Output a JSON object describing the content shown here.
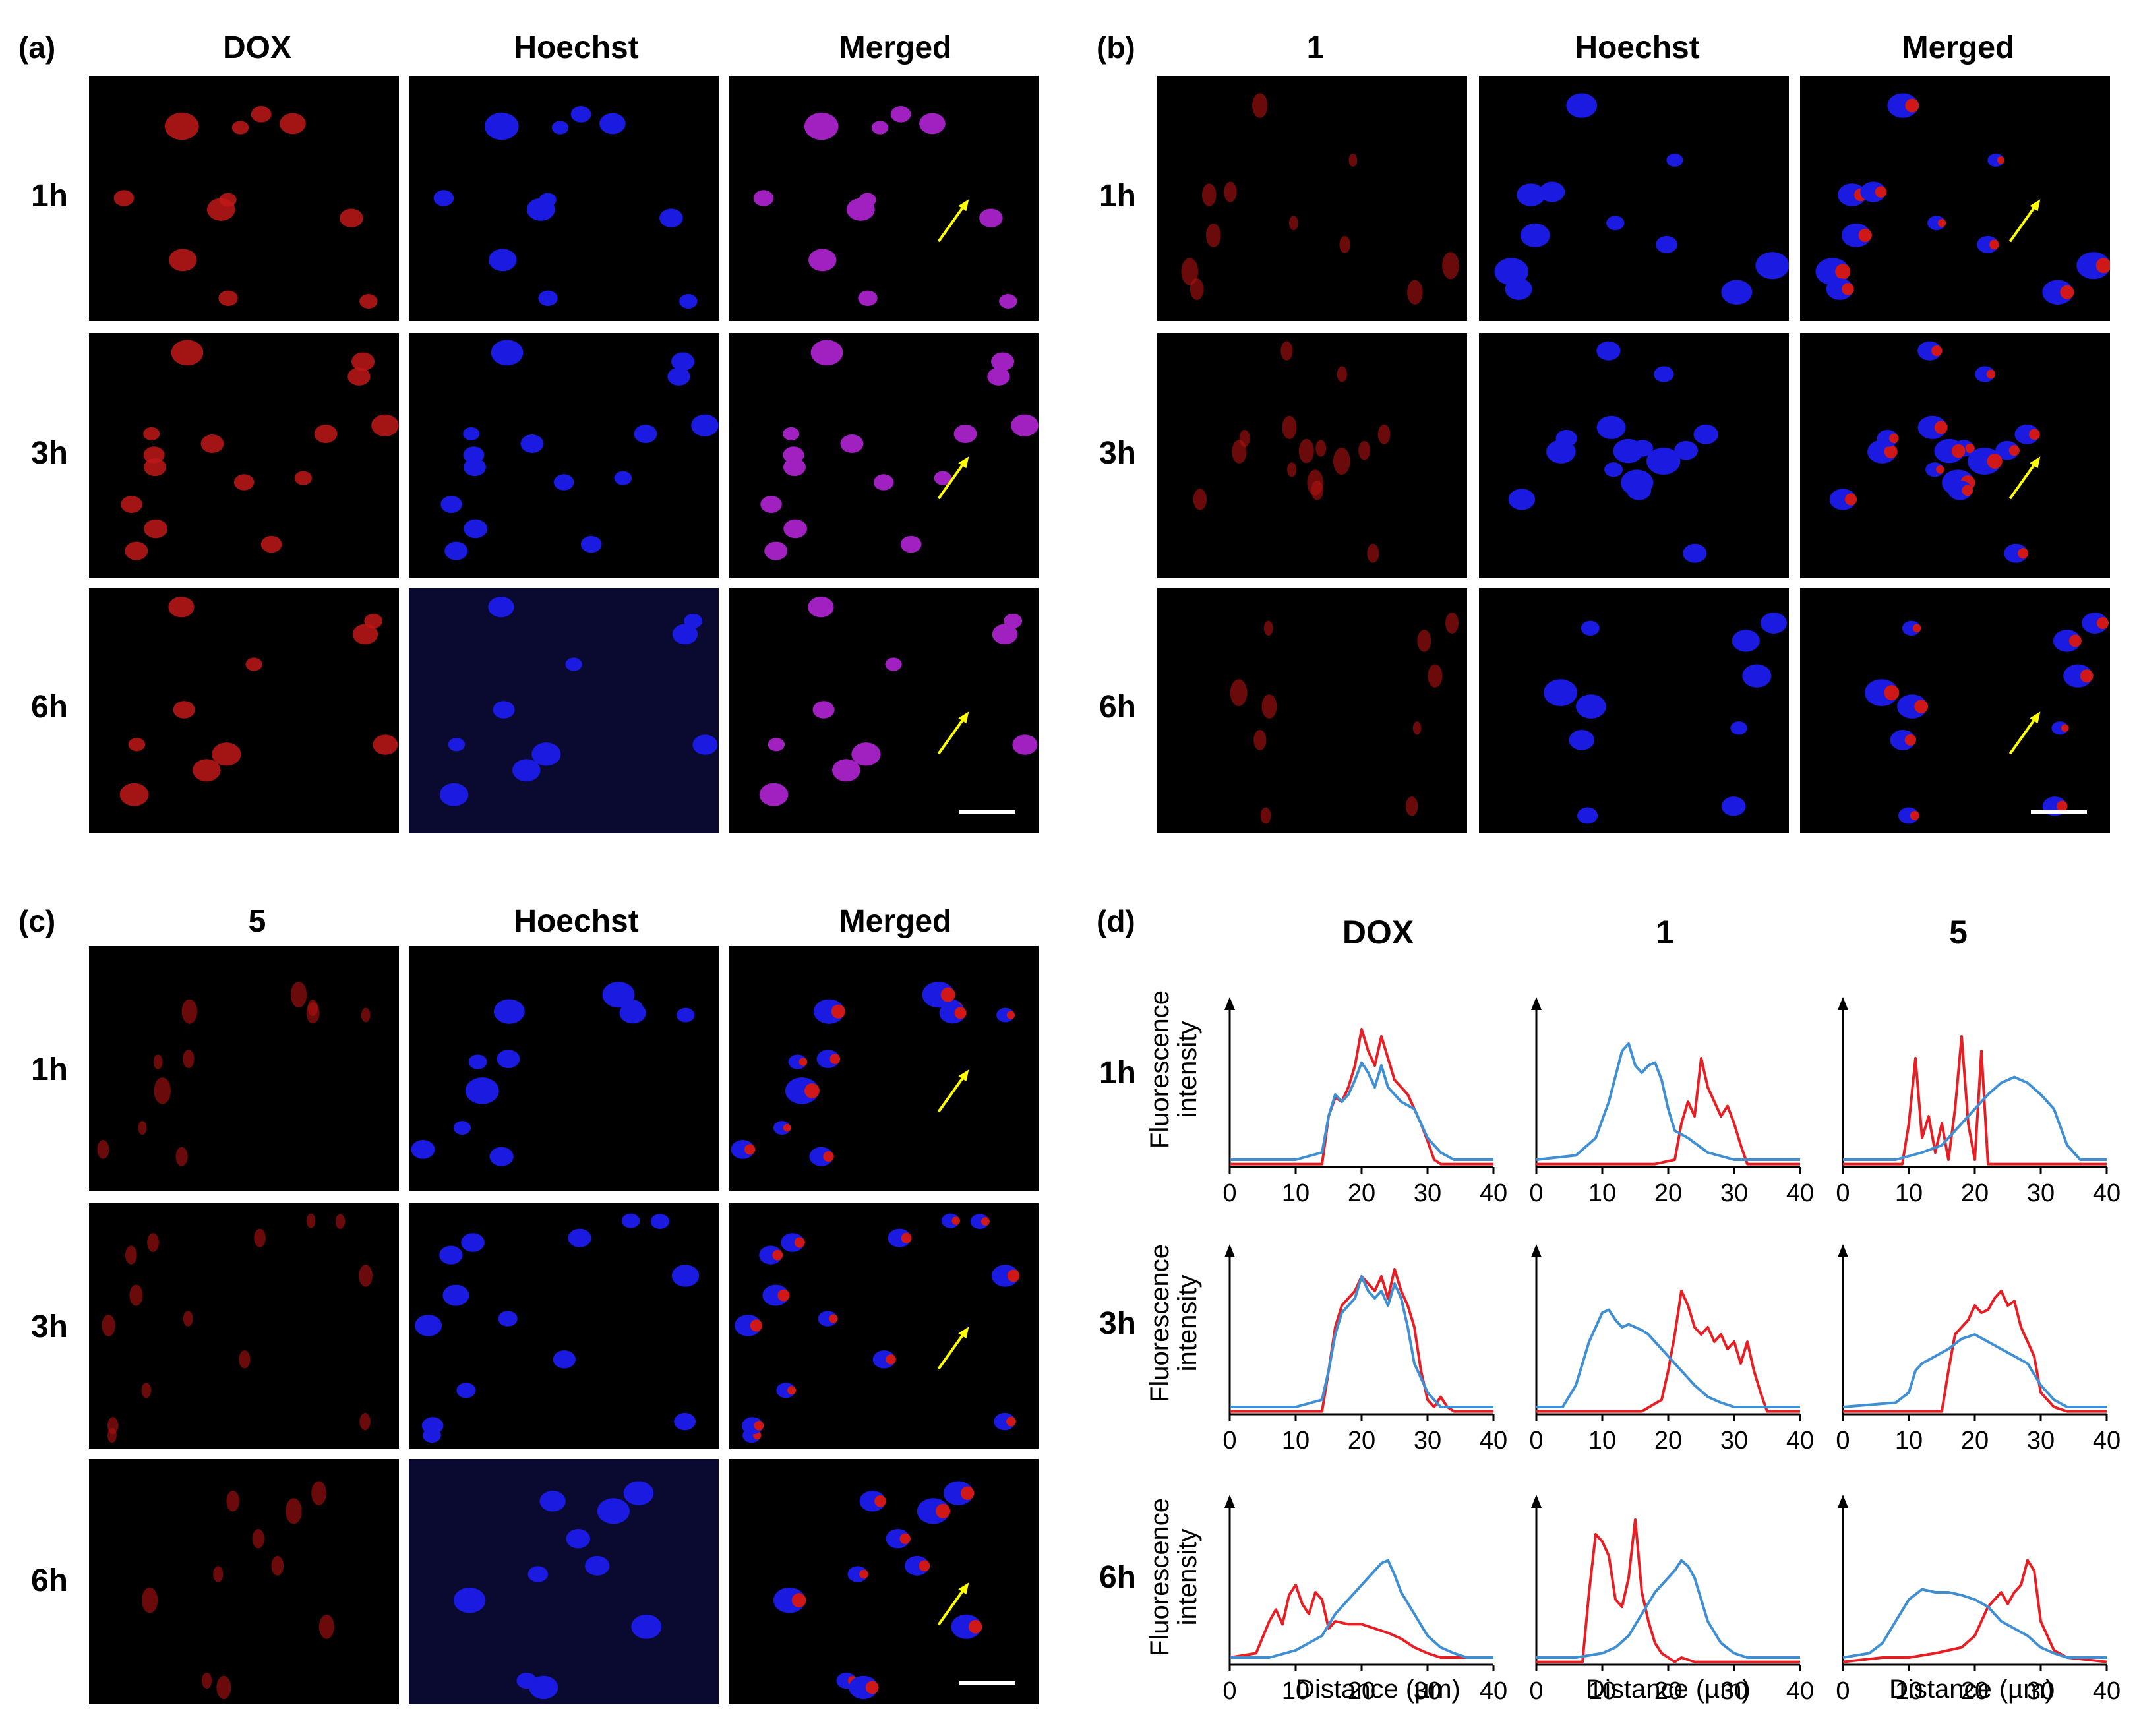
{
  "panels": {
    "a": {
      "label": "(a)",
      "columns": [
        "DOX",
        "Hoechst",
        "Merged"
      ],
      "rows": [
        "1h",
        "3h",
        "6h"
      ]
    },
    "b": {
      "label": "(b)",
      "columns": [
        "1",
        "Hoechst",
        "Merged"
      ],
      "rows": [
        "1h",
        "3h",
        "6h"
      ]
    },
    "c": {
      "label": "(c)",
      "columns": [
        "5",
        "Hoechst",
        "Merged"
      ],
      "rows": [
        "1h",
        "3h",
        "6h"
      ]
    },
    "d": {
      "label": "(d)",
      "columns": [
        "DOX",
        "1",
        "5"
      ],
      "rows": [
        "1h",
        "3h",
        "6h"
      ],
      "ylabel": "Fluorescence\nintensity",
      "xlabel": "Distance (µm)"
    }
  },
  "colors": {
    "red_channel": "#e81e25",
    "blue_channel": "#3f8fd2",
    "arrow": "#ffff00",
    "scalebar": "#ffffff"
  },
  "chart_data": [
    {
      "type": "line",
      "panel": "d",
      "compound": "DOX",
      "time": "1h",
      "xlim": [
        0,
        40
      ],
      "xticks": [
        0,
        10,
        20,
        30,
        40
      ],
      "series": [
        {
          "color": "red",
          "x": [
            0,
            14,
            15,
            16,
            17,
            18,
            19,
            20,
            21,
            22,
            23,
            24,
            25,
            26,
            27,
            28,
            29,
            30,
            31,
            32,
            40
          ],
          "y": [
            0.02,
            0.02,
            0.35,
            0.48,
            0.45,
            0.55,
            0.7,
            0.95,
            0.8,
            0.7,
            0.9,
            0.75,
            0.6,
            0.55,
            0.5,
            0.4,
            0.3,
            0.18,
            0.05,
            0.02,
            0.02
          ]
        },
        {
          "color": "blue",
          "x": [
            0,
            10,
            14,
            15,
            16,
            17,
            18,
            19,
            20,
            21,
            22,
            23,
            24,
            25,
            26,
            28,
            30,
            32,
            34,
            40
          ],
          "y": [
            0.05,
            0.05,
            0.1,
            0.35,
            0.5,
            0.45,
            0.5,
            0.6,
            0.72,
            0.65,
            0.55,
            0.7,
            0.55,
            0.5,
            0.45,
            0.4,
            0.2,
            0.1,
            0.05,
            0.05
          ]
        }
      ]
    },
    {
      "type": "line",
      "panel": "d",
      "compound": "1",
      "time": "1h",
      "xlim": [
        0,
        40
      ],
      "xticks": [
        0,
        10,
        20,
        30,
        40
      ],
      "series": [
        {
          "color": "red",
          "x": [
            0,
            18,
            21,
            22,
            23,
            24,
            25,
            26,
            27,
            28,
            29,
            30,
            31,
            32,
            40
          ],
          "y": [
            0.02,
            0.02,
            0.05,
            0.3,
            0.45,
            0.35,
            0.75,
            0.55,
            0.45,
            0.35,
            0.42,
            0.3,
            0.15,
            0.02,
            0.02
          ]
        },
        {
          "color": "blue",
          "x": [
            0,
            6,
            9,
            11,
            13,
            14,
            15,
            16,
            17,
            18,
            19,
            20,
            21,
            23,
            26,
            30,
            40
          ],
          "y": [
            0.05,
            0.08,
            0.2,
            0.45,
            0.8,
            0.85,
            0.7,
            0.65,
            0.7,
            0.72,
            0.6,
            0.4,
            0.25,
            0.2,
            0.1,
            0.05,
            0.05
          ]
        }
      ]
    },
    {
      "type": "line",
      "panel": "d",
      "compound": "5",
      "time": "1h",
      "xlim": [
        0,
        40
      ],
      "xticks": [
        0,
        10,
        20,
        30,
        40
      ],
      "series": [
        {
          "color": "red",
          "x": [
            0,
            9,
            10,
            11,
            12,
            13,
            14,
            15,
            16,
            17,
            18,
            19,
            20,
            21,
            22,
            23,
            40
          ],
          "y": [
            0.02,
            0.02,
            0.3,
            0.75,
            0.2,
            0.35,
            0.1,
            0.3,
            0.05,
            0.4,
            0.9,
            0.3,
            0.05,
            0.8,
            0.02,
            0.02,
            0.02
          ]
        },
        {
          "color": "blue",
          "x": [
            0,
            8,
            12,
            15,
            18,
            20,
            22,
            24,
            26,
            28,
            30,
            32,
            34,
            36,
            40
          ],
          "y": [
            0.05,
            0.05,
            0.1,
            0.15,
            0.3,
            0.4,
            0.5,
            0.58,
            0.62,
            0.58,
            0.5,
            0.4,
            0.15,
            0.05,
            0.05
          ]
        }
      ]
    },
    {
      "type": "line",
      "panel": "d",
      "compound": "DOX",
      "time": "3h",
      "xlim": [
        0,
        40
      ],
      "xticks": [
        0,
        10,
        20,
        30,
        40
      ],
      "series": [
        {
          "color": "red",
          "x": [
            0,
            14,
            15,
            16,
            17,
            18,
            19,
            20,
            21,
            22,
            23,
            24,
            25,
            26,
            27,
            28,
            29,
            30,
            31,
            32,
            33,
            34,
            40
          ],
          "y": [
            0.02,
            0.02,
            0.3,
            0.6,
            0.75,
            0.8,
            0.85,
            0.95,
            0.9,
            0.85,
            0.95,
            0.8,
            1.0,
            0.85,
            0.75,
            0.6,
            0.3,
            0.1,
            0.05,
            0.12,
            0.05,
            0.02,
            0.02
          ]
        },
        {
          "color": "blue",
          "x": [
            0,
            10,
            14,
            15,
            16,
            17,
            18,
            19,
            20,
            21,
            22,
            23,
            24,
            25,
            26,
            27,
            28,
            30,
            32,
            40
          ],
          "y": [
            0.05,
            0.05,
            0.1,
            0.3,
            0.55,
            0.7,
            0.75,
            0.8,
            0.95,
            0.85,
            0.8,
            0.85,
            0.75,
            0.9,
            0.8,
            0.6,
            0.35,
            0.15,
            0.05,
            0.05
          ]
        }
      ]
    },
    {
      "type": "line",
      "panel": "d",
      "compound": "1",
      "time": "3h",
      "xlim": [
        0,
        40
      ],
      "xticks": [
        0,
        10,
        20,
        30,
        40
      ],
      "series": [
        {
          "color": "red",
          "x": [
            0,
            16,
            19,
            20,
            21,
            22,
            23,
            24,
            25,
            26,
            27,
            28,
            29,
            30,
            31,
            32,
            33,
            34,
            35,
            40
          ],
          "y": [
            0.02,
            0.02,
            0.1,
            0.3,
            0.55,
            0.85,
            0.75,
            0.6,
            0.55,
            0.6,
            0.5,
            0.55,
            0.45,
            0.5,
            0.35,
            0.5,
            0.3,
            0.15,
            0.02,
            0.02
          ]
        },
        {
          "color": "blue",
          "x": [
            0,
            4,
            6,
            8,
            10,
            11,
            12,
            13,
            14,
            15,
            16,
            17,
            18,
            20,
            22,
            24,
            26,
            28,
            30,
            34,
            40
          ],
          "y": [
            0.05,
            0.05,
            0.2,
            0.5,
            0.7,
            0.72,
            0.65,
            0.6,
            0.62,
            0.6,
            0.58,
            0.55,
            0.5,
            0.4,
            0.3,
            0.2,
            0.12,
            0.08,
            0.05,
            0.05,
            0.05
          ]
        }
      ]
    },
    {
      "type": "line",
      "panel": "d",
      "compound": "5",
      "time": "3h",
      "xlim": [
        0,
        40
      ],
      "xticks": [
        0,
        10,
        20,
        30,
        40
      ],
      "series": [
        {
          "color": "red",
          "x": [
            0,
            15,
            16,
            17,
            18,
            19,
            20,
            21,
            22,
            23,
            24,
            25,
            26,
            27,
            28,
            29,
            30,
            32,
            34,
            40
          ],
          "y": [
            0.02,
            0.02,
            0.3,
            0.55,
            0.6,
            0.65,
            0.75,
            0.7,
            0.72,
            0.8,
            0.85,
            0.75,
            0.78,
            0.6,
            0.5,
            0.4,
            0.15,
            0.05,
            0.02,
            0.02
          ]
        },
        {
          "color": "blue",
          "x": [
            0,
            8,
            10,
            11,
            12,
            14,
            16,
            18,
            20,
            22,
            24,
            26,
            28,
            30,
            32,
            34,
            36,
            40
          ],
          "y": [
            0.05,
            0.08,
            0.15,
            0.3,
            0.35,
            0.4,
            0.45,
            0.52,
            0.55,
            0.5,
            0.45,
            0.4,
            0.35,
            0.2,
            0.1,
            0.05,
            0.05,
            0.05
          ]
        }
      ]
    },
    {
      "type": "line",
      "panel": "d",
      "compound": "DOX",
      "time": "6h",
      "xlim": [
        0,
        40
      ],
      "xticks": [
        0,
        10,
        20,
        30,
        40
      ],
      "series": [
        {
          "color": "red",
          "x": [
            0,
            4,
            6,
            7,
            8,
            9,
            10,
            11,
            12,
            13,
            14,
            15,
            16,
            18,
            20,
            22,
            24,
            26,
            28,
            30,
            32,
            36,
            40
          ],
          "y": [
            0.05,
            0.08,
            0.3,
            0.38,
            0.28,
            0.48,
            0.55,
            0.42,
            0.35,
            0.5,
            0.45,
            0.25,
            0.3,
            0.28,
            0.28,
            0.25,
            0.22,
            0.18,
            0.12,
            0.08,
            0.05,
            0.05,
            0.05
          ]
        },
        {
          "color": "blue",
          "x": [
            0,
            6,
            10,
            14,
            16,
            18,
            20,
            21,
            22,
            23,
            24,
            25,
            26,
            28,
            30,
            32,
            34,
            36,
            40
          ],
          "y": [
            0.05,
            0.05,
            0.1,
            0.2,
            0.35,
            0.45,
            0.55,
            0.6,
            0.65,
            0.7,
            0.72,
            0.62,
            0.5,
            0.35,
            0.2,
            0.12,
            0.08,
            0.05,
            0.05
          ]
        }
      ]
    },
    {
      "type": "line",
      "panel": "d",
      "compound": "1",
      "time": "6h",
      "xlim": [
        0,
        40
      ],
      "xticks": [
        0,
        10,
        20,
        30,
        40
      ],
      "series": [
        {
          "color": "red",
          "x": [
            0,
            7,
            8,
            9,
            10,
            11,
            12,
            13,
            14,
            15,
            16,
            17,
            18,
            19,
            20,
            21,
            22,
            24,
            26,
            40
          ],
          "y": [
            0.02,
            0.02,
            0.5,
            0.9,
            0.85,
            0.75,
            0.45,
            0.4,
            0.6,
            1.0,
            0.5,
            0.3,
            0.15,
            0.08,
            0.05,
            0.02,
            0.05,
            0.02,
            0.02,
            0.02
          ]
        },
        {
          "color": "blue",
          "x": [
            0,
            6,
            10,
            12,
            14,
            16,
            18,
            20,
            21,
            22,
            23,
            24,
            25,
            26,
            28,
            30,
            32,
            34,
            40
          ],
          "y": [
            0.05,
            0.05,
            0.08,
            0.12,
            0.2,
            0.35,
            0.5,
            0.6,
            0.65,
            0.72,
            0.68,
            0.6,
            0.45,
            0.3,
            0.15,
            0.08,
            0.05,
            0.05,
            0.05
          ]
        }
      ]
    },
    {
      "type": "line",
      "panel": "d",
      "compound": "5",
      "time": "6h",
      "xlim": [
        0,
        40
      ],
      "xticks": [
        0,
        10,
        20,
        30,
        40
      ],
      "series": [
        {
          "color": "red",
          "x": [
            0,
            6,
            10,
            14,
            16,
            18,
            20,
            21,
            22,
            23,
            24,
            25,
            26,
            27,
            28,
            29,
            30,
            32,
            34,
            40
          ],
          "y": [
            0.02,
            0.05,
            0.05,
            0.08,
            0.1,
            0.12,
            0.2,
            0.3,
            0.4,
            0.45,
            0.5,
            0.42,
            0.5,
            0.55,
            0.72,
            0.65,
            0.3,
            0.1,
            0.05,
            0.02
          ]
        },
        {
          "color": "blue",
          "x": [
            0,
            4,
            6,
            8,
            10,
            12,
            14,
            16,
            18,
            20,
            22,
            24,
            26,
            28,
            30,
            32,
            34,
            40
          ],
          "y": [
            0.05,
            0.08,
            0.15,
            0.3,
            0.45,
            0.52,
            0.5,
            0.5,
            0.48,
            0.45,
            0.4,
            0.3,
            0.25,
            0.2,
            0.12,
            0.08,
            0.05,
            0.05
          ]
        }
      ]
    }
  ]
}
